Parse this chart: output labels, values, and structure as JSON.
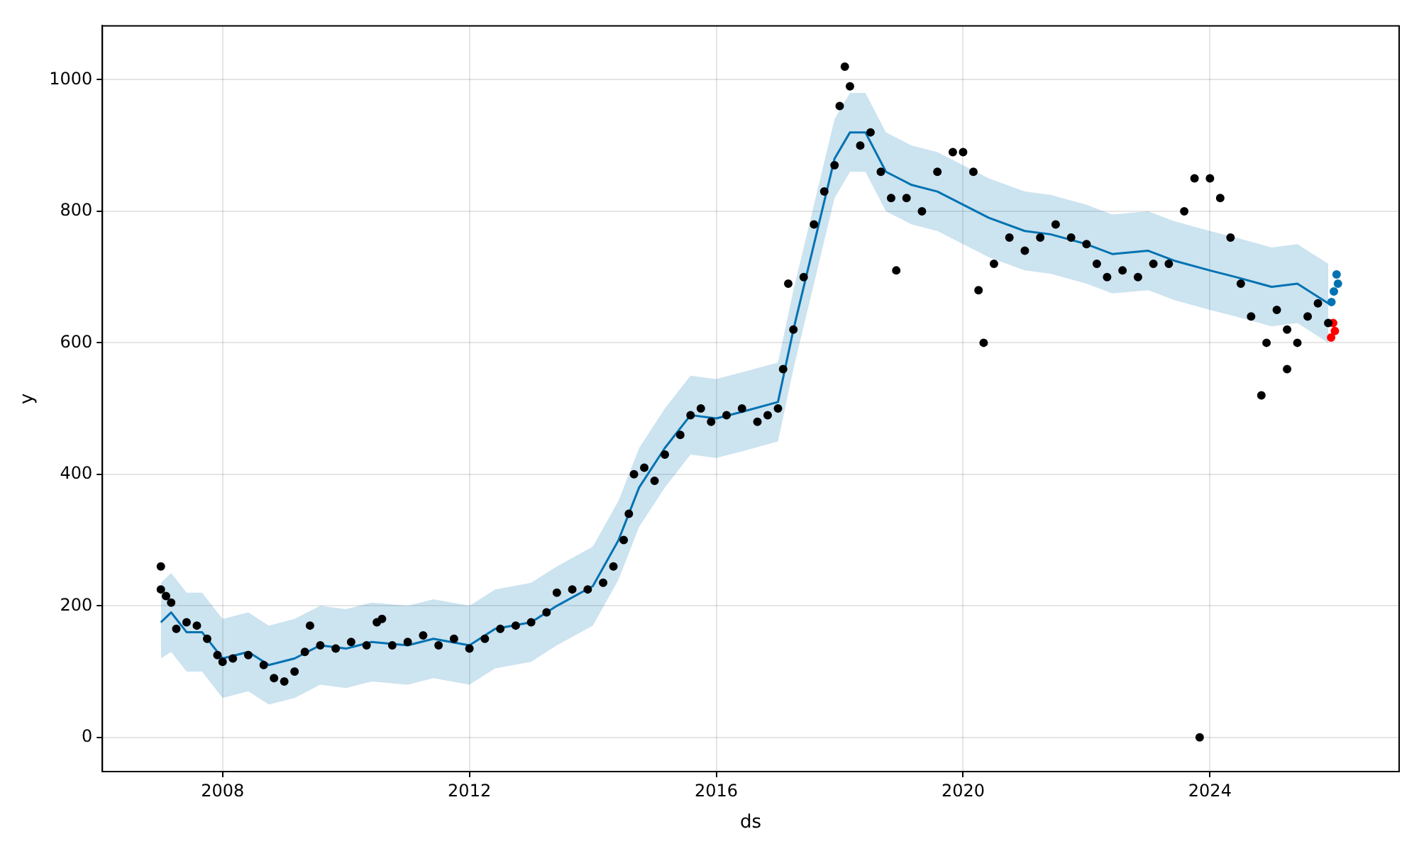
{
  "chart_data": {
    "type": "scatter",
    "xlabel": "ds",
    "ylabel": "y",
    "xlim": [
      "2006-01-20",
      "2027-01-25"
    ],
    "ylim": [
      -52,
      1082
    ],
    "xticks": [
      "2008",
      "2012",
      "2016",
      "2020",
      "2024"
    ],
    "yticks": [
      0,
      200,
      400,
      600,
      800,
      1000
    ],
    "grid": true,
    "marker": "circle",
    "series": [
      {
        "type": "line",
        "marker": "none",
        "color": "#0072b2",
        "x": [
          "2007-01",
          "2007-03",
          "2007-06",
          "2007-09",
          "2008-01",
          "2008-06",
          "2008-10",
          "2009-03",
          "2009-08",
          "2010-01",
          "2010-06",
          "2011-01",
          "2011-06",
          "2012-01",
          "2012-06",
          "2013-01",
          "2013-06",
          "2014-01",
          "2014-06",
          "2014-10",
          "2015-03",
          "2015-08",
          "2016-01",
          "2016-06",
          "2017-01",
          "2017-04",
          "2017-08",
          "2017-12",
          "2018-03",
          "2018-06",
          "2018-10",
          "2019-03",
          "2019-08",
          "2020-01",
          "2020-06",
          "2021-01",
          "2021-06",
          "2022-01",
          "2022-06",
          "2023-01",
          "2023-06",
          "2024-01",
          "2024-06",
          "2025-01",
          "2025-06",
          "2025-10",
          "2025-12"
        ],
        "values": [
          175,
          190,
          160,
          160,
          120,
          130,
          110,
          120,
          140,
          135,
          145,
          140,
          150,
          140,
          165,
          175,
          200,
          230,
          300,
          380,
          440,
          490,
          485,
          495,
          510,
          620,
          750,
          880,
          920,
          920,
          860,
          840,
          830,
          810,
          790,
          770,
          765,
          750,
          735,
          740,
          725,
          710,
          700,
          685,
          690,
          670,
          660
        ],
        "lower": [
          120,
          130,
          100,
          100,
          60,
          70,
          50,
          60,
          80,
          75,
          85,
          80,
          90,
          80,
          105,
          115,
          140,
          170,
          240,
          320,
          380,
          430,
          425,
          435,
          450,
          560,
          690,
          820,
          860,
          860,
          800,
          780,
          770,
          750,
          730,
          710,
          705,
          690,
          675,
          680,
          665,
          650,
          640,
          625,
          630,
          610,
          600
        ],
        "upper": [
          235,
          250,
          220,
          220,
          180,
          190,
          170,
          180,
          200,
          195,
          205,
          200,
          210,
          200,
          225,
          235,
          260,
          290,
          360,
          440,
          500,
          550,
          545,
          555,
          570,
          680,
          810,
          940,
          980,
          980,
          920,
          900,
          890,
          870,
          850,
          830,
          825,
          810,
          795,
          800,
          785,
          770,
          760,
          745,
          750,
          730,
          720
        ]
      },
      {
        "color": "#000000",
        "x": [
          "2007-01",
          "2007-01",
          "2007-02",
          "2007-03",
          "2007-04",
          "2007-06",
          "2007-08",
          "2007-10",
          "2007-12",
          "2008-01",
          "2008-03",
          "2008-06",
          "2008-09",
          "2008-11",
          "2009-01",
          "2009-03",
          "2009-05",
          "2009-06",
          "2009-08",
          "2009-11",
          "2010-02",
          "2010-05",
          "2010-07",
          "2010-08",
          "2010-10",
          "2011-01",
          "2011-04",
          "2011-07",
          "2011-10",
          "2012-01",
          "2012-04",
          "2012-07",
          "2012-10",
          "2013-01",
          "2013-04",
          "2013-06",
          "2013-09",
          "2013-12",
          "2014-03",
          "2014-05",
          "2014-07",
          "2014-08",
          "2014-09",
          "2014-11",
          "2015-01",
          "2015-03",
          "2015-06",
          "2015-08",
          "2015-10",
          "2015-12",
          "2016-03",
          "2016-06",
          "2016-09",
          "2016-11",
          "2017-01",
          "2017-02",
          "2017-03",
          "2017-04",
          "2017-06",
          "2017-08",
          "2017-10",
          "2017-12",
          "2018-01",
          "2018-02",
          "2018-03",
          "2018-05",
          "2018-07",
          "2018-09",
          "2018-11",
          "2018-12",
          "2019-02",
          "2019-05",
          "2019-08",
          "2019-11",
          "2020-01",
          "2020-03",
          "2020-04",
          "2020-05",
          "2020-07",
          "2020-10",
          "2021-01",
          "2021-04",
          "2021-07",
          "2021-10",
          "2022-01",
          "2022-03",
          "2022-05",
          "2022-08",
          "2022-11",
          "2023-02",
          "2023-05",
          "2023-08",
          "2023-10",
          "2023-11",
          "2024-01",
          "2024-03",
          "2024-05",
          "2024-07",
          "2024-09",
          "2024-11",
          "2024-12",
          "2025-02",
          "2025-04",
          "2025-04",
          "2025-06",
          "2025-08",
          "2025-10",
          "2025-12"
        ],
        "values": [
          260,
          225,
          215,
          205,
          165,
          175,
          170,
          150,
          125,
          115,
          120,
          125,
          110,
          90,
          85,
          100,
          130,
          170,
          140,
          135,
          145,
          140,
          175,
          180,
          140,
          145,
          155,
          140,
          150,
          135,
          150,
          165,
          170,
          175,
          190,
          220,
          225,
          225,
          235,
          260,
          300,
          340,
          400,
          410,
          390,
          430,
          460,
          490,
          500,
          480,
          490,
          500,
          480,
          490,
          500,
          560,
          690,
          620,
          700,
          780,
          830,
          870,
          960,
          1020,
          990,
          900,
          920,
          860,
          820,
          710,
          820,
          800,
          860,
          890,
          890,
          860,
          680,
          600,
          720,
          760,
          740,
          760,
          780,
          760,
          750,
          720,
          700,
          710,
          700,
          720,
          720,
          800,
          850,
          0,
          850,
          820,
          760,
          690,
          640,
          520,
          600,
          650,
          620,
          560,
          600,
          640,
          660,
          630
        ]
      },
      {
        "color": "#0072b2",
        "x": [
          "2025-12-20",
          "2026-01-04",
          "2026-01-20",
          "2026-01-28"
        ],
        "values": [
          662,
          678,
          704,
          690
        ]
      },
      {
        "color": "#ff0000",
        "x": [
          "2025-12-18",
          "2025-12-30",
          "2026-01-10"
        ],
        "values": [
          608,
          630,
          618
        ]
      }
    ]
  }
}
